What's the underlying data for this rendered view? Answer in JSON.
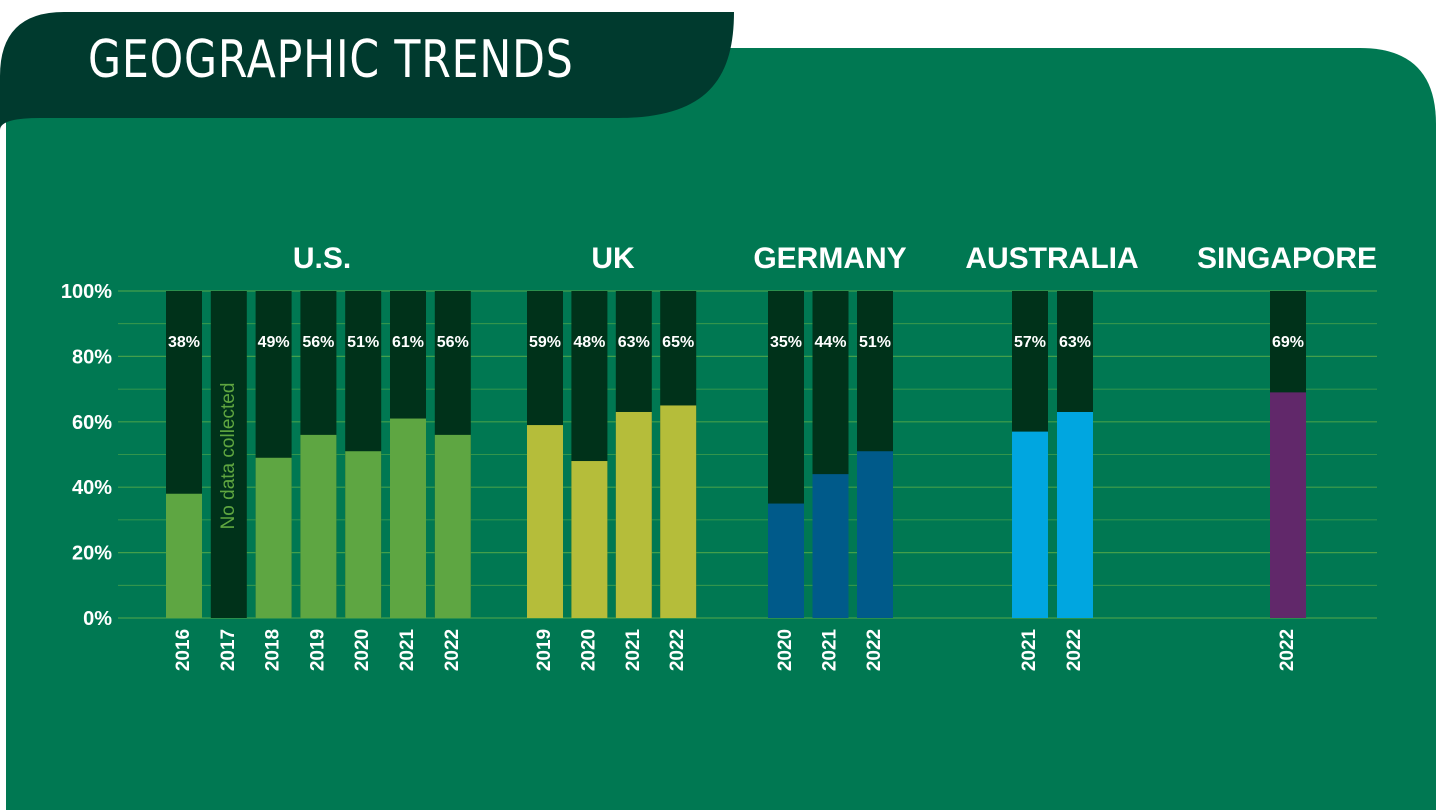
{
  "page": {
    "title": "GEOGRAPHIC TRENDS"
  },
  "colors": {
    "panel": "#007852",
    "title_bg": "#003a2e",
    "bar_remainder": "#00321a",
    "gridline": "#4fa64a",
    "label_text": "#ffffff",
    "note_text": "#5fa640"
  },
  "chart_data": {
    "type": "bar",
    "stacked_to": 100,
    "ylim": [
      0,
      100
    ],
    "yticks": [
      "0%",
      "20%",
      "40%",
      "60%",
      "80%",
      "100%"
    ],
    "grid": true,
    "groups": [
      {
        "name": "U.S.",
        "color": "#5ea642",
        "bars": [
          {
            "year": "2016",
            "value": 38,
            "label": "38%"
          },
          {
            "year": "2017",
            "value": null,
            "label": "",
            "note": "No data collected"
          },
          {
            "year": "2018",
            "value": 49,
            "label": "49%"
          },
          {
            "year": "2019",
            "value": 56,
            "label": "56%"
          },
          {
            "year": "2020",
            "value": 51,
            "label": "51%"
          },
          {
            "year": "2021",
            "value": 61,
            "label": "61%"
          },
          {
            "year": "2022",
            "value": 56,
            "label": "56%"
          }
        ]
      },
      {
        "name": "UK",
        "color": "#b5bd3a",
        "bars": [
          {
            "year": "2019",
            "value": 59,
            "label": "59%"
          },
          {
            "year": "2020",
            "value": 48,
            "label": "48%"
          },
          {
            "year": "2021",
            "value": 63,
            "label": "63%"
          },
          {
            "year": "2022",
            "value": 65,
            "label": "65%"
          }
        ]
      },
      {
        "name": "GERMANY",
        "color": "#005a8a",
        "bars": [
          {
            "year": "2020",
            "value": 35,
            "label": "35%"
          },
          {
            "year": "2021",
            "value": 44,
            "label": "44%"
          },
          {
            "year": "2022",
            "value": 51,
            "label": "51%"
          }
        ]
      },
      {
        "name": "AUSTRALIA",
        "color": "#00a6e0",
        "bars": [
          {
            "year": "2021",
            "value": 57,
            "label": "57%"
          },
          {
            "year": "2022",
            "value": 63,
            "label": "63%"
          }
        ]
      },
      {
        "name": "SINGAPORE",
        "color": "#61286a",
        "bars": [
          {
            "year": "2022",
            "value": 69,
            "label": "69%"
          }
        ]
      }
    ]
  }
}
